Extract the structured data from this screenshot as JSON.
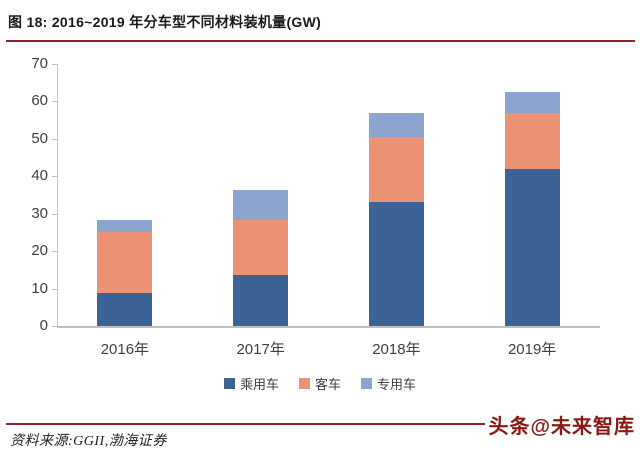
{
  "header": {
    "title": "图 18: 2016~2019 年分车型不同材料装机量(GW)"
  },
  "chart_data": {
    "type": "bar",
    "stacked": true,
    "title": "图 18: 2016~2019 年分车型不同材料装机量(GW)",
    "categories": [
      "2016年",
      "2017年",
      "2018年",
      "2019年"
    ],
    "series": [
      {
        "name": "乘用车",
        "color": "#3b6396",
        "values": [
          8.8,
          13.5,
          33.2,
          42.0
        ]
      },
      {
        "name": "客车",
        "color": "#ed9375",
        "values": [
          16.2,
          14.7,
          17.3,
          14.9
        ]
      },
      {
        "name": "专用车",
        "color": "#8da4ce",
        "values": [
          3.2,
          8.1,
          6.4,
          5.6
        ]
      }
    ],
    "totals": [
      28.2,
      36.3,
      56.9,
      62.5
    ],
    "xlabel": "",
    "ylabel": "",
    "ylim": [
      0,
      70
    ],
    "ytick_step": 10,
    "yticks": [
      0,
      10,
      20,
      30,
      40,
      50,
      60,
      70
    ],
    "grid": false,
    "legend_position": "bottom"
  },
  "footer": {
    "source": "资料来源:GGII,渤海证券",
    "watermark": "头条@未来智库"
  },
  "colors": {
    "title_rule": "#8c2332",
    "axis": "#c3c3c3",
    "watermark": "#8b1814"
  }
}
